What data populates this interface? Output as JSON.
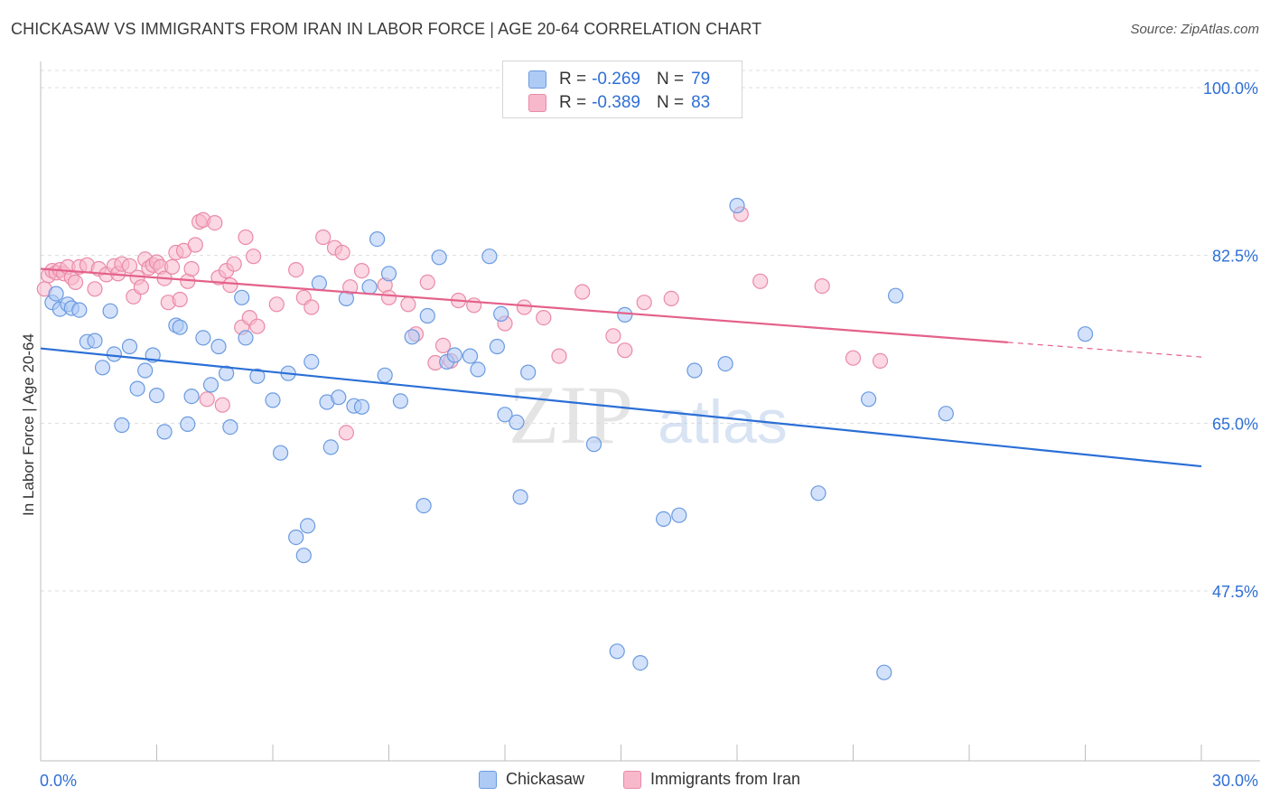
{
  "title": "CHICKASAW VS IMMIGRANTS FROM IRAN IN LABOR FORCE | AGE 20-64 CORRELATION CHART",
  "source": "Source: ZipAtlas.com",
  "watermark": {
    "zip": "ZIP",
    "atlas": "atlas"
  },
  "legend": {
    "rows": [
      {
        "r_label": "R =",
        "r_value": "-0.269",
        "n_label": "N =",
        "n_value": "79"
      },
      {
        "r_label": "R =",
        "r_value": "-0.389",
        "n_label": "N =",
        "n_value": "83"
      }
    ]
  },
  "chart_data": {
    "type": "scatter",
    "xlabel": "",
    "ylabel": "In Labor Force | Age 20-64",
    "xlim": [
      0,
      30
    ],
    "ylim": [
      30,
      100
    ],
    "x_tick_labels": [
      "0.0%",
      "30.0%"
    ],
    "y_ticks": [
      47.5,
      65.0,
      82.5,
      100.0
    ],
    "y_tick_labels": [
      "47.5%",
      "65.0%",
      "82.5%",
      "100.0%"
    ],
    "grid": true,
    "legend_position": "bottom",
    "colors": {
      "chickasaw_fill": "#aecbf5",
      "chickasaw_stroke": "#6a9ae0",
      "chickasaw_line": "#2b6fd6",
      "iran_fill": "#f7b8cc",
      "iran_stroke": "#ea8aa8",
      "iran_line": "#e4618a",
      "tick_label": "#2e6fd6",
      "grid": "#dddddd"
    },
    "series": [
      {
        "name": "Chickasaw",
        "trend": {
          "x": [
            0,
            30
          ],
          "y": [
            72.8,
            60.5
          ],
          "dashed_from": null
        },
        "points": [
          [
            0.3,
            77.6
          ],
          [
            0.5,
            76.9
          ],
          [
            0.7,
            77.4
          ],
          [
            0.8,
            77.0
          ],
          [
            1.0,
            76.8
          ],
          [
            1.2,
            73.5
          ],
          [
            1.4,
            73.6
          ],
          [
            1.6,
            70.8
          ],
          [
            1.8,
            76.7
          ],
          [
            1.9,
            72.2
          ],
          [
            2.1,
            64.8
          ],
          [
            2.3,
            73.0
          ],
          [
            2.5,
            68.6
          ],
          [
            2.7,
            70.5
          ],
          [
            2.9,
            72.1
          ],
          [
            3.0,
            67.9
          ],
          [
            3.2,
            64.1
          ],
          [
            3.5,
            75.2
          ],
          [
            3.6,
            75.0
          ],
          [
            3.8,
            64.9
          ],
          [
            3.9,
            67.8
          ],
          [
            4.2,
            73.9
          ],
          [
            4.4,
            69.0
          ],
          [
            4.6,
            73.0
          ],
          [
            4.8,
            70.2
          ],
          [
            4.9,
            64.6
          ],
          [
            5.2,
            78.1
          ],
          [
            5.3,
            73.9
          ],
          [
            5.6,
            69.9
          ],
          [
            6.0,
            67.4
          ],
          [
            6.2,
            61.9
          ],
          [
            6.4,
            70.2
          ],
          [
            6.6,
            53.1
          ],
          [
            6.8,
            51.2
          ],
          [
            6.9,
            54.3
          ],
          [
            7.0,
            71.4
          ],
          [
            7.2,
            79.6
          ],
          [
            7.4,
            67.2
          ],
          [
            7.5,
            62.5
          ],
          [
            7.7,
            67.7
          ],
          [
            7.9,
            78.0
          ],
          [
            8.1,
            66.8
          ],
          [
            8.3,
            66.7
          ],
          [
            8.5,
            79.2
          ],
          [
            8.7,
            84.2
          ],
          [
            8.9,
            70.0
          ],
          [
            9.0,
            80.6
          ],
          [
            9.3,
            67.3
          ],
          [
            9.6,
            74.0
          ],
          [
            9.9,
            56.4
          ],
          [
            10.0,
            76.2
          ],
          [
            10.3,
            82.3
          ],
          [
            10.5,
            71.4
          ],
          [
            10.7,
            72.1
          ],
          [
            11.1,
            72.0
          ],
          [
            11.3,
            70.6
          ],
          [
            11.6,
            82.4
          ],
          [
            11.8,
            73.0
          ],
          [
            11.9,
            76.4
          ],
          [
            12.0,
            65.9
          ],
          [
            12.3,
            65.1
          ],
          [
            12.4,
            57.3
          ],
          [
            12.6,
            70.3
          ],
          [
            14.3,
            62.8
          ],
          [
            14.9,
            41.2
          ],
          [
            15.1,
            76.3
          ],
          [
            15.5,
            40.0
          ],
          [
            16.1,
            55.0
          ],
          [
            16.5,
            55.4
          ],
          [
            16.9,
            70.5
          ],
          [
            17.7,
            71.2
          ],
          [
            18.0,
            87.7
          ],
          [
            20.1,
            57.7
          ],
          [
            21.4,
            67.5
          ],
          [
            21.8,
            39.0
          ],
          [
            22.1,
            78.3
          ],
          [
            23.4,
            66.0
          ],
          [
            27.0,
            74.3
          ],
          [
            0.4,
            78.5
          ]
        ]
      },
      {
        "name": "Immigrants from Iran",
        "trend": {
          "x": [
            0,
            30
          ],
          "y": [
            81.1,
            71.9
          ],
          "dashed_from": 25.0
        },
        "points": [
          [
            0.2,
            80.4
          ],
          [
            0.3,
            80.9
          ],
          [
            0.4,
            80.7
          ],
          [
            0.5,
            81.0
          ],
          [
            0.6,
            80.6
          ],
          [
            0.7,
            81.3
          ],
          [
            0.8,
            80.2
          ],
          [
            0.9,
            79.7
          ],
          [
            1.0,
            81.3
          ],
          [
            1.2,
            81.5
          ],
          [
            1.4,
            79.0
          ],
          [
            1.5,
            81.1
          ],
          [
            1.7,
            80.5
          ],
          [
            1.9,
            81.4
          ],
          [
            2.0,
            80.6
          ],
          [
            2.1,
            81.6
          ],
          [
            2.3,
            81.4
          ],
          [
            2.4,
            78.2
          ],
          [
            2.5,
            80.2
          ],
          [
            2.6,
            79.2
          ],
          [
            2.7,
            82.1
          ],
          [
            2.8,
            81.2
          ],
          [
            2.9,
            81.5
          ],
          [
            3.0,
            81.8
          ],
          [
            3.1,
            81.3
          ],
          [
            3.2,
            80.1
          ],
          [
            3.3,
            77.6
          ],
          [
            3.4,
            81.3
          ],
          [
            3.5,
            82.8
          ],
          [
            3.6,
            77.9
          ],
          [
            3.7,
            83.0
          ],
          [
            3.8,
            79.8
          ],
          [
            3.9,
            81.1
          ],
          [
            4.0,
            83.6
          ],
          [
            4.1,
            86.0
          ],
          [
            4.2,
            86.2
          ],
          [
            4.3,
            67.5
          ],
          [
            4.5,
            85.9
          ],
          [
            4.6,
            80.2
          ],
          [
            4.7,
            66.9
          ],
          [
            4.8,
            80.9
          ],
          [
            4.9,
            79.4
          ],
          [
            5.0,
            81.6
          ],
          [
            5.2,
            75.0
          ],
          [
            5.3,
            84.4
          ],
          [
            5.4,
            76.0
          ],
          [
            5.5,
            82.4
          ],
          [
            5.6,
            75.1
          ],
          [
            6.1,
            77.4
          ],
          [
            6.6,
            81.0
          ],
          [
            6.8,
            78.1
          ],
          [
            7.0,
            77.1
          ],
          [
            7.3,
            84.4
          ],
          [
            7.6,
            83.3
          ],
          [
            7.8,
            82.8
          ],
          [
            7.9,
            64.0
          ],
          [
            8.0,
            79.2
          ],
          [
            8.3,
            80.9
          ],
          [
            8.9,
            79.4
          ],
          [
            9.0,
            78.1
          ],
          [
            9.5,
            77.4
          ],
          [
            9.7,
            74.3
          ],
          [
            10.0,
            79.7
          ],
          [
            10.2,
            71.3
          ],
          [
            10.4,
            73.1
          ],
          [
            10.6,
            71.5
          ],
          [
            10.8,
            77.8
          ],
          [
            11.2,
            77.3
          ],
          [
            12.0,
            75.4
          ],
          [
            12.5,
            77.1
          ],
          [
            13.0,
            76.0
          ],
          [
            13.4,
            72.0
          ],
          [
            14.0,
            78.7
          ],
          [
            14.8,
            74.1
          ],
          [
            15.1,
            72.6
          ],
          [
            15.6,
            77.6
          ],
          [
            16.3,
            78.0
          ],
          [
            18.1,
            86.8
          ],
          [
            18.6,
            79.8
          ],
          [
            20.2,
            79.3
          ],
          [
            21.0,
            71.8
          ],
          [
            21.7,
            71.5
          ],
          [
            0.1,
            79.0
          ]
        ]
      }
    ]
  },
  "bottom_legend": [
    {
      "label": "Chickasaw"
    },
    {
      "label": "Immigrants from Iran"
    }
  ]
}
